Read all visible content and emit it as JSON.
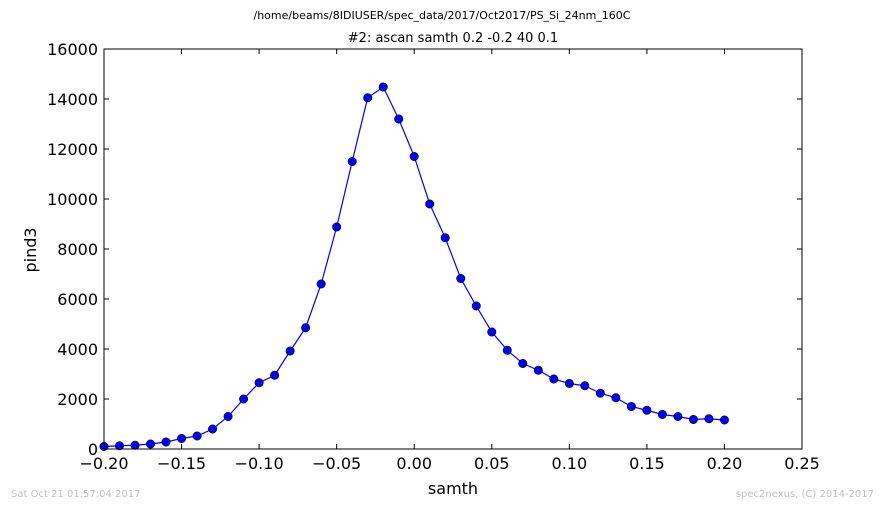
{
  "chart_data": {
    "type": "line",
    "suptitle": "/home/beams/8IDIUSER/spec_data/2017/Oct2017/PS_Si_24nm_160C",
    "title": "#2: ascan  samth 0.2 -0.2  40 0.1",
    "xlabel": "samth",
    "ylabel": "pind3",
    "xlim": [
      -0.2,
      0.25
    ],
    "ylim": [
      0,
      16000
    ],
    "xticks": [
      -0.2,
      -0.15,
      -0.1,
      -0.05,
      0.0,
      0.05,
      0.1,
      0.15,
      0.2,
      0.25
    ],
    "xtick_labels": [
      "−0.20",
      "−0.15",
      "−0.10",
      "−0.05",
      "0.00",
      "0.05",
      "0.10",
      "0.15",
      "0.20",
      "0.25"
    ],
    "yticks": [
      0,
      2000,
      4000,
      6000,
      8000,
      10000,
      12000,
      14000,
      16000
    ],
    "ytick_labels": [
      "0",
      "2000",
      "4000",
      "6000",
      "8000",
      "10000",
      "12000",
      "14000",
      "16000"
    ],
    "grid": false,
    "series": [
      {
        "color": "#0000ff",
        "marker": "circle",
        "x": [
          -0.2,
          -0.19,
          -0.18,
          -0.17,
          -0.16,
          -0.15,
          -0.14,
          -0.13,
          -0.12,
          -0.11,
          -0.1,
          -0.09,
          -0.08,
          -0.07,
          -0.06,
          -0.05,
          -0.04,
          -0.03,
          -0.02,
          -0.01,
          0.0,
          0.01,
          0.02,
          0.03,
          0.04,
          0.05,
          0.06,
          0.07,
          0.08,
          0.09,
          0.1,
          0.11,
          0.12,
          0.13,
          0.14,
          0.15,
          0.16,
          0.17,
          0.18,
          0.19,
          0.2
        ],
        "y": [
          100,
          130,
          150,
          200,
          280,
          420,
          520,
          800,
          1300,
          2000,
          2650,
          2950,
          3920,
          4850,
          6600,
          8880,
          11500,
          14050,
          14480,
          13200,
          11700,
          9800,
          8450,
          6820,
          5720,
          4680,
          3950,
          3420,
          3150,
          2800,
          2620,
          2530,
          2230,
          2050,
          1700,
          1550,
          1380,
          1300,
          1180,
          1210,
          1160
        ]
      }
    ]
  },
  "footer": {
    "left": "Sat Oct 21 01:57:04 2017",
    "right": "spec2nexus, (C) 2014-2017"
  }
}
